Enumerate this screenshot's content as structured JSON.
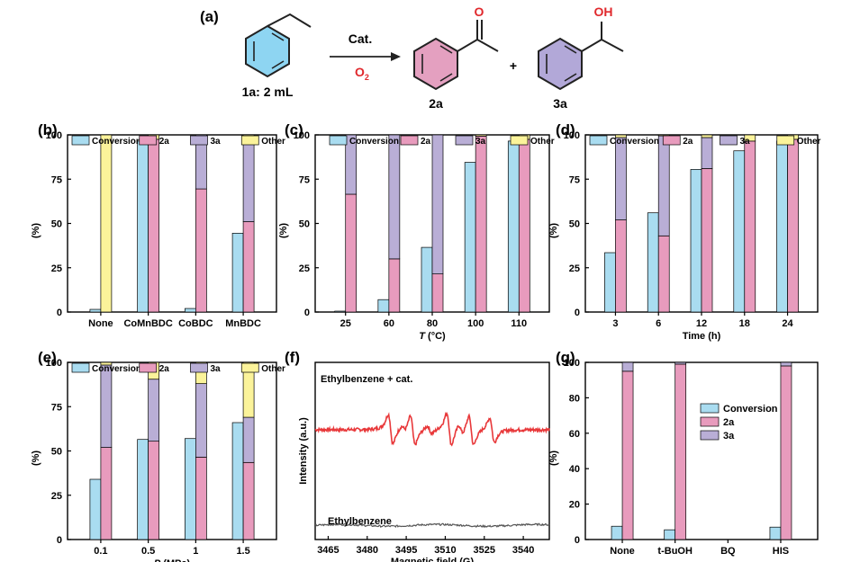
{
  "colors": {
    "conversion": "#a9dcf0",
    "2a": "#e89bbd",
    "3a": "#b9aed6",
    "other": "#fbf39a",
    "benzene_fill": "#8ed5f2",
    "ketone_fill": "#e4a0c0",
    "alcohol_fill": "#b2a8d8",
    "red": "#e0282c",
    "epr_red": "#e8383a",
    "epr_gray": "#555555"
  },
  "scheme": {
    "label": "(a)",
    "reactant_label": "1a: 2 mL",
    "catalyst": "Cat.",
    "oxidant": "O",
    "oxidant_sub": "2",
    "plus": "+",
    "product1_label": "2a",
    "product2_label": "3a",
    "ketone_atom": "O",
    "alcohol_atom": "OH"
  },
  "chart_data": [
    {
      "id": "b",
      "panel_label": "(b)",
      "type": "bar",
      "categories": [
        "None",
        "CoMnBDC",
        "CoBDC",
        "MnBDC"
      ],
      "conversion": [
        1.5,
        96.5,
        2,
        44.5
      ],
      "stacked": [
        {
          "2a": 0,
          "3a": 0,
          "other": 100
        },
        {
          "2a": 97.5,
          "3a": 0,
          "other": 2.5
        },
        {
          "2a": 69.5,
          "3a": 30.5,
          "other": 0
        },
        {
          "2a": 51,
          "3a": 47.5,
          "other": 1.5
        }
      ],
      "ylabel": "(%)",
      "xlabel": "",
      "ylim": [
        0,
        100
      ],
      "yticks": [
        0,
        25,
        50,
        75,
        100
      ],
      "legend": [
        "Conversion",
        "2a",
        "3a",
        "Other"
      ]
    },
    {
      "id": "c",
      "panel_label": "(c)",
      "type": "bar",
      "categories": [
        "25",
        "60",
        "80",
        "100",
        "110"
      ],
      "conversion": [
        0.5,
        7,
        36.5,
        84.5,
        96.5
      ],
      "stacked": [
        {
          "2a": 66.5,
          "3a": 33.5,
          "other": 0
        },
        {
          "2a": 30,
          "3a": 70,
          "other": 0
        },
        {
          "2a": 21.5,
          "3a": 78.5,
          "other": 0
        },
        {
          "2a": 99.3,
          "3a": 0,
          "other": 0.7
        },
        {
          "2a": 97.5,
          "3a": 0,
          "other": 2.5
        }
      ],
      "ylabel": "(%)",
      "xlabel_pre": "T",
      "xlabel_post": " (°C)",
      "ylim": [
        0,
        100
      ],
      "yticks": [
        0,
        25,
        50,
        75,
        100
      ],
      "legend": [
        "Conversion",
        "2a",
        "3a",
        "Other"
      ]
    },
    {
      "id": "d",
      "panel_label": "(d)",
      "type": "bar",
      "categories": [
        "3",
        "6",
        "12",
        "18",
        "24"
      ],
      "conversion": [
        33.5,
        56,
        80.5,
        91,
        96.5
      ],
      "stacked": [
        {
          "2a": 52,
          "3a": 46.5,
          "other": 1.5
        },
        {
          "2a": 43,
          "3a": 56.5,
          "other": 0.5
        },
        {
          "2a": 81,
          "3a": 17.5,
          "other": 1.5
        },
        {
          "2a": 96.5,
          "3a": 0,
          "other": 3.5
        },
        {
          "2a": 97.5,
          "3a": 0,
          "other": 2.5
        }
      ],
      "ylabel": "(%)",
      "xlabel": "Time (h)",
      "ylim": [
        0,
        100
      ],
      "yticks": [
        0,
        25,
        50,
        75,
        100
      ],
      "legend": [
        "Conversion",
        "2a",
        "3a",
        "Other"
      ]
    },
    {
      "id": "e",
      "panel_label": "(e)",
      "type": "bar",
      "categories": [
        "0.1",
        "0.5",
        "1",
        "1.5"
      ],
      "conversion": [
        34,
        56.5,
        57,
        66
      ],
      "stacked": [
        {
          "2a": 52,
          "3a": 46.5,
          "other": 1.5
        },
        {
          "2a": 55.5,
          "3a": 35,
          "other": 9.5
        },
        {
          "2a": 46.5,
          "3a": 41.5,
          "other": 12
        },
        {
          "2a": 43.5,
          "3a": 25.5,
          "other": 31
        }
      ],
      "ylabel": "(%)",
      "xlabel_pre": "P",
      "xlabel_post": " (MPa)",
      "ylim": [
        0,
        100
      ],
      "yticks": [
        0,
        25,
        50,
        75,
        100
      ],
      "legend": [
        "Conversion",
        "2a",
        "3a",
        "Other"
      ]
    },
    {
      "id": "f",
      "panel_label": "(f)",
      "type": "line",
      "xlabel": "Magnetic field (G)",
      "ylabel": "Intensity (a.u.)",
      "xlim": [
        3460,
        3550
      ],
      "xticks": [
        3465,
        3480,
        3495,
        3510,
        3525,
        3540
      ],
      "series": [
        {
          "name": "Ethylbenzene + cat.",
          "baseline": 0.62,
          "peaks": [
            {
              "x": 3489,
              "a": 0.55
            },
            {
              "x": 3494,
              "a": 0.12
            },
            {
              "x": 3497.5,
              "a": 0.55
            },
            {
              "x": 3504,
              "a": 0.15
            },
            {
              "x": 3511.5,
              "a": 0.6
            },
            {
              "x": 3516,
              "a": 0.2
            },
            {
              "x": 3520,
              "a": 0.55
            },
            {
              "x": 3528,
              "a": 0.45
            }
          ]
        },
        {
          "name": "Ethylbenzene",
          "baseline": 0.08
        }
      ]
    },
    {
      "id": "g",
      "panel_label": "(g)",
      "type": "bar",
      "categories": [
        "None",
        "t-BuOH",
        "BQ",
        "HIS"
      ],
      "conversion": [
        7.5,
        5.5,
        0,
        7
      ],
      "stacked": [
        {
          "2a": 95,
          "3a": 5,
          "other": 0
        },
        {
          "2a": 99,
          "3a": 1,
          "other": 0
        },
        {
          "2a": 0,
          "3a": 0,
          "other": 0
        },
        {
          "2a": 98,
          "3a": 2,
          "other": 0
        }
      ],
      "ylabel": "(%)",
      "xlabel": "",
      "ylim": [
        0,
        100
      ],
      "yticks": [
        0,
        20,
        40,
        60,
        80,
        100
      ],
      "legend": [
        "Conversion",
        "2a",
        "3a"
      ]
    }
  ]
}
